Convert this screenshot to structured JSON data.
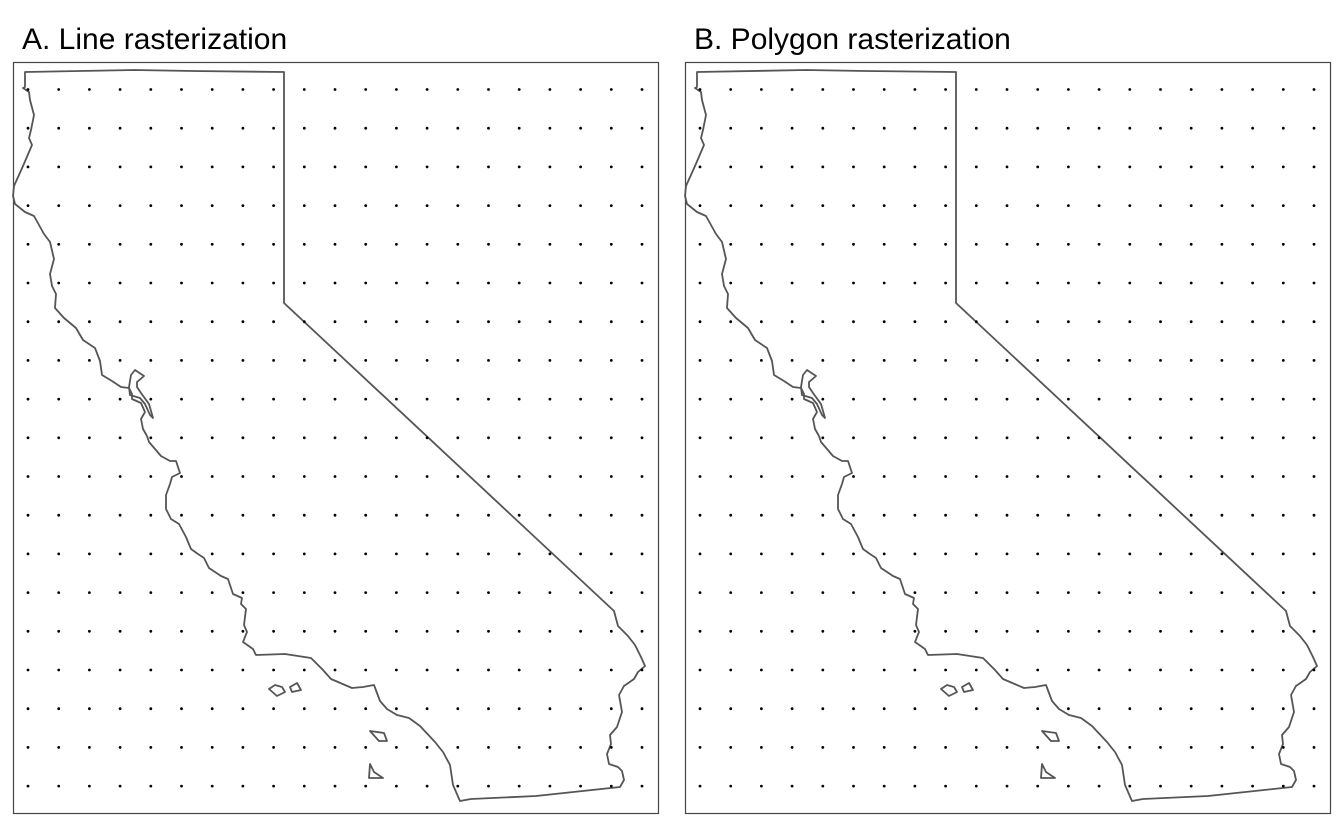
{
  "panels": [
    {
      "id": "a",
      "title": "A. Line rasterization"
    },
    {
      "id": "b",
      "title": "B. Polygon rasterization"
    }
  ],
  "grid": {
    "columns": 21,
    "rows": 19
  },
  "colors": {
    "outline": "#555555",
    "dots": "#000000",
    "frame": "#444444"
  }
}
